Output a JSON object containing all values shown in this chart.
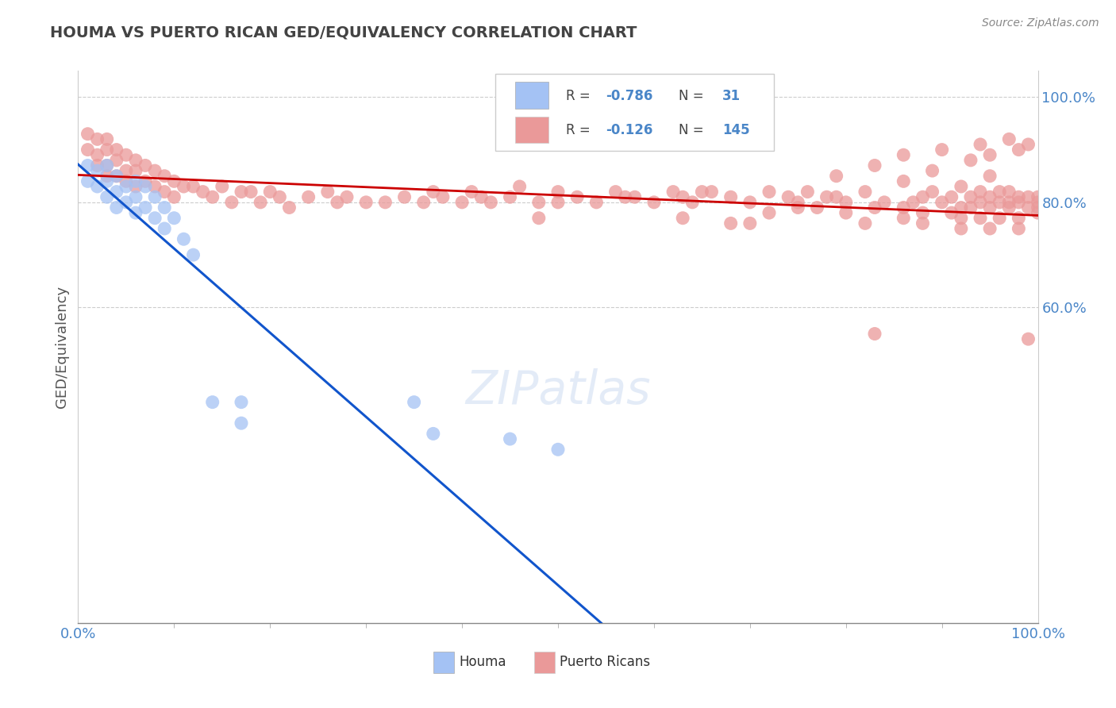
{
  "title": "HOUMA VS PUERTO RICAN GED/EQUIVALENCY CORRELATION CHART",
  "source": "Source: ZipAtlas.com",
  "ylabel": "GED/Equivalency",
  "houma_color": "#a4c2f4",
  "houma_edge_color": "#6d9eeb",
  "pr_color": "#ea9999",
  "pr_edge_color": "#e06666",
  "houma_line_color": "#1155cc",
  "pr_line_color": "#cc0000",
  "bg_color": "#ffffff",
  "houma_line_x0": 0.0,
  "houma_line_y0": 0.872,
  "houma_line_x1": 0.545,
  "houma_line_y1": 0.0,
  "pr_line_x0": 0.0,
  "pr_line_y0": 0.852,
  "pr_line_x1": 1.0,
  "pr_line_y1": 0.775,
  "houma_x": [
    0.01,
    0.01,
    0.02,
    0.02,
    0.03,
    0.03,
    0.03,
    0.04,
    0.04,
    0.04,
    0.05,
    0.05,
    0.06,
    0.06,
    0.06,
    0.07,
    0.07,
    0.08,
    0.08,
    0.09,
    0.09,
    0.1,
    0.11,
    0.12,
    0.14,
    0.17,
    0.17,
    0.35,
    0.37,
    0.45,
    0.5
  ],
  "houma_y": [
    0.87,
    0.84,
    0.86,
    0.83,
    0.87,
    0.84,
    0.81,
    0.85,
    0.82,
    0.79,
    0.83,
    0.8,
    0.84,
    0.81,
    0.78,
    0.83,
    0.79,
    0.81,
    0.77,
    0.79,
    0.75,
    0.77,
    0.73,
    0.7,
    0.42,
    0.42,
    0.38,
    0.42,
    0.36,
    0.35,
    0.33
  ],
  "pr_x": [
    0.01,
    0.01,
    0.02,
    0.02,
    0.02,
    0.03,
    0.03,
    0.03,
    0.03,
    0.04,
    0.04,
    0.04,
    0.05,
    0.05,
    0.05,
    0.06,
    0.06,
    0.06,
    0.07,
    0.07,
    0.08,
    0.08,
    0.09,
    0.09,
    0.1,
    0.1,
    0.11,
    0.12,
    0.13,
    0.14,
    0.15,
    0.16,
    0.17,
    0.18,
    0.19,
    0.2,
    0.21,
    0.22,
    0.24,
    0.26,
    0.27,
    0.28,
    0.3,
    0.32,
    0.34,
    0.36,
    0.37,
    0.38,
    0.4,
    0.41,
    0.42,
    0.43,
    0.45,
    0.46,
    0.48,
    0.5,
    0.5,
    0.52,
    0.54,
    0.56,
    0.58,
    0.6,
    0.62,
    0.63,
    0.64,
    0.66,
    0.68,
    0.7,
    0.72,
    0.74,
    0.75,
    0.76,
    0.78,
    0.8,
    0.82,
    0.84,
    0.86,
    0.88,
    0.89,
    0.9,
    0.91,
    0.92,
    0.93,
    0.94,
    0.94,
    0.95,
    0.95,
    0.96,
    0.96,
    0.97,
    0.97,
    0.98,
    0.98,
    0.99,
    0.99,
    1.0,
    1.0,
    1.0,
    1.0,
    0.63,
    0.7,
    0.82,
    0.88,
    0.92,
    0.95,
    0.98,
    0.72,
    0.8,
    0.86,
    0.92,
    0.48,
    0.68,
    0.77,
    0.88,
    0.94,
    0.98,
    0.57,
    0.75,
    0.83,
    0.91,
    0.96,
    0.65,
    0.79,
    0.87,
    0.93,
    0.79,
    0.86,
    0.92,
    0.97,
    0.83,
    0.89,
    0.95,
    0.86,
    0.93,
    0.9,
    0.95,
    0.94,
    0.98,
    0.97,
    0.99,
    0.99
  ],
  "pr_y": [
    0.93,
    0.9,
    0.92,
    0.89,
    0.87,
    0.92,
    0.9,
    0.87,
    0.85,
    0.9,
    0.88,
    0.85,
    0.89,
    0.86,
    0.84,
    0.88,
    0.86,
    0.83,
    0.87,
    0.84,
    0.86,
    0.83,
    0.85,
    0.82,
    0.84,
    0.81,
    0.83,
    0.83,
    0.82,
    0.81,
    0.83,
    0.8,
    0.82,
    0.82,
    0.8,
    0.82,
    0.81,
    0.79,
    0.81,
    0.82,
    0.8,
    0.81,
    0.8,
    0.8,
    0.81,
    0.8,
    0.82,
    0.81,
    0.8,
    0.82,
    0.81,
    0.8,
    0.81,
    0.83,
    0.8,
    0.8,
    0.82,
    0.81,
    0.8,
    0.82,
    0.81,
    0.8,
    0.82,
    0.81,
    0.8,
    0.82,
    0.81,
    0.8,
    0.82,
    0.81,
    0.79,
    0.82,
    0.81,
    0.8,
    0.82,
    0.8,
    0.79,
    0.81,
    0.82,
    0.8,
    0.81,
    0.79,
    0.81,
    0.8,
    0.82,
    0.79,
    0.81,
    0.8,
    0.82,
    0.8,
    0.79,
    0.81,
    0.8,
    0.79,
    0.81,
    0.8,
    0.79,
    0.81,
    0.78,
    0.77,
    0.76,
    0.76,
    0.76,
    0.75,
    0.75,
    0.75,
    0.78,
    0.78,
    0.77,
    0.77,
    0.77,
    0.76,
    0.79,
    0.78,
    0.77,
    0.77,
    0.81,
    0.8,
    0.79,
    0.78,
    0.77,
    0.82,
    0.81,
    0.8,
    0.79,
    0.85,
    0.84,
    0.83,
    0.82,
    0.87,
    0.86,
    0.85,
    0.89,
    0.88,
    0.9,
    0.89,
    0.91,
    0.9,
    0.92,
    0.91,
    0.54
  ],
  "pr_outlier_x": [
    0.83
  ],
  "pr_outlier_y": [
    0.55
  ],
  "xlim": [
    0.0,
    1.0
  ],
  "ylim": [
    0.0,
    1.05
  ],
  "yticks": [
    0.6,
    0.8,
    1.0
  ],
  "ytick_labels": [
    "60.0%",
    "80.0%",
    "100.0%"
  ],
  "xtick_labels": [
    "0.0%",
    "100.0%"
  ],
  "tick_color": "#4a86c8",
  "grid_color": "#c0c0c0",
  "title_color": "#434343",
  "source_color": "#888888",
  "legend_text_color": "#434343",
  "legend_value_color": "#4a86c8"
}
